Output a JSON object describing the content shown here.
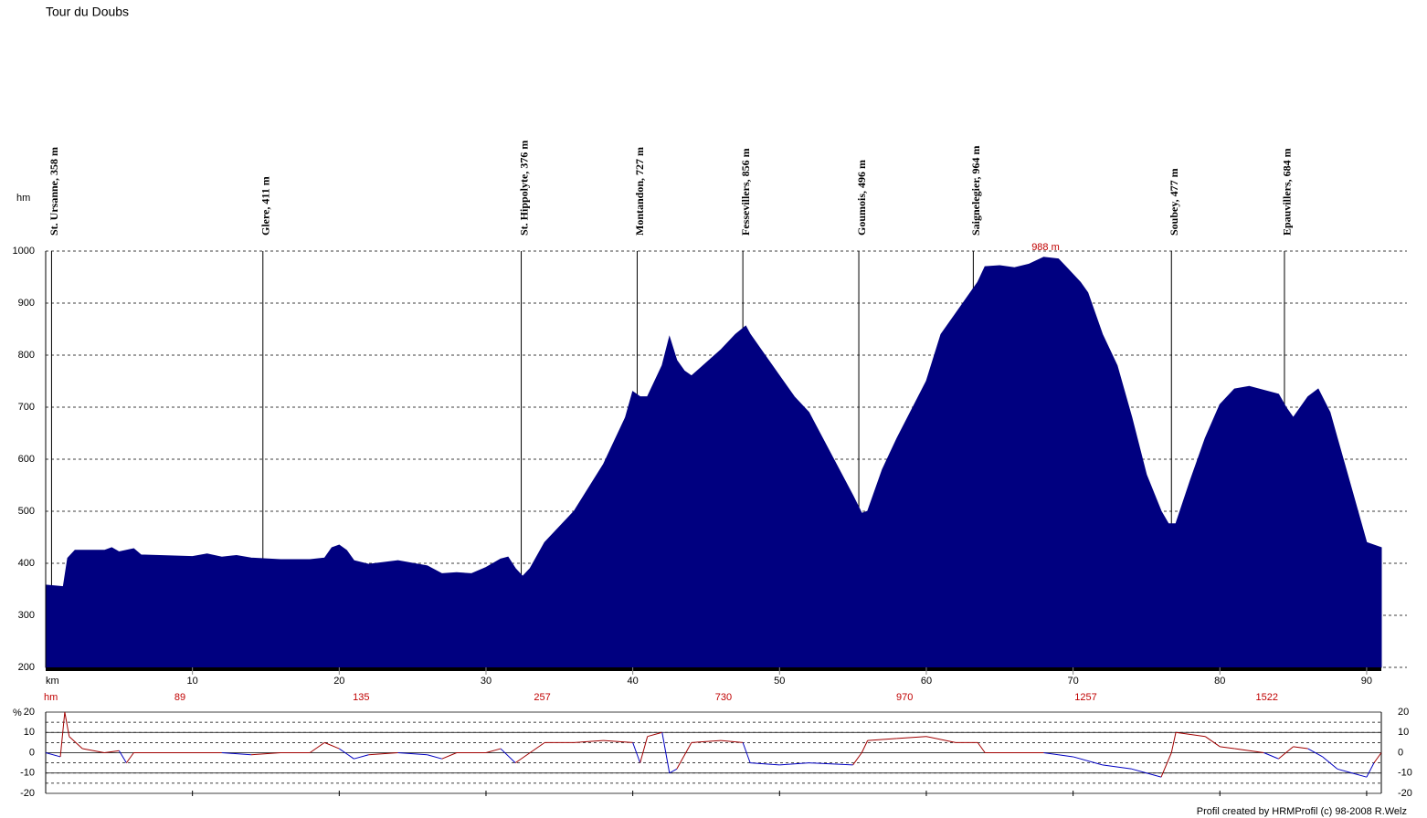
{
  "chart_data": [
    {
      "type": "area",
      "title": "Tour du Doubs",
      "y_label": "hm",
      "x_label": "km",
      "color": "#000080",
      "x": [
        0,
        1.2,
        1.5,
        2,
        4,
        4.5,
        5,
        6,
        6.5,
        10,
        11,
        12,
        13,
        14,
        16,
        18,
        19,
        19.5,
        20,
        20.5,
        21,
        22,
        24,
        25,
        26,
        27,
        28,
        29,
        30,
        31,
        31.5,
        32,
        32.5,
        33,
        34,
        36,
        38,
        39.5,
        40,
        40.5,
        41,
        42,
        42.5,
        43,
        43.5,
        44,
        46,
        47,
        47.7,
        48,
        50,
        51,
        52,
        55,
        55.6,
        56,
        57,
        58,
        60,
        61,
        62,
        63.5,
        64,
        65,
        66,
        67,
        68,
        69,
        69.5,
        70.5,
        71,
        72,
        73,
        74,
        75,
        76,
        76.5,
        77,
        78,
        79,
        80,
        81,
        82,
        84,
        84.5,
        85,
        86,
        86.7,
        87.5,
        88,
        89,
        90,
        91
      ],
      "values": [
        358,
        355,
        410,
        425,
        425,
        430,
        422,
        428,
        416,
        413,
        418,
        412,
        415,
        410,
        407,
        407,
        410,
        430,
        435,
        425,
        405,
        398,
        405,
        400,
        395,
        380,
        382,
        380,
        392,
        408,
        412,
        390,
        375,
        390,
        440,
        500,
        590,
        680,
        730,
        720,
        720,
        780,
        835,
        790,
        770,
        760,
        810,
        840,
        856,
        840,
        760,
        720,
        690,
        530,
        496,
        500,
        580,
        640,
        750,
        840,
        880,
        940,
        970,
        972,
        968,
        975,
        988,
        985,
        970,
        940,
        920,
        840,
        780,
        680,
        570,
        500,
        476,
        476,
        560,
        640,
        705,
        735,
        740,
        725,
        700,
        680,
        720,
        735,
        690,
        640,
        540,
        440,
        430
      ],
      "xlim": [
        0,
        91
      ],
      "ylim": [
        200,
        1000
      ],
      "xticks": [
        10,
        20,
        30,
        40,
        50,
        60,
        70,
        80,
        90
      ],
      "yticks": [
        200,
        300,
        400,
        500,
        600,
        700,
        800,
        900,
        1000
      ],
      "grid": true,
      "waypoints": [
        {
          "label": "St. Ursanne, 358 m",
          "x": 0.4
        },
        {
          "label": "Glere, 411 m",
          "x": 14.8
        },
        {
          "label": "St. Hippolyte, 376 m",
          "x": 32.4
        },
        {
          "label": "Montandon, 727 m",
          "x": 40.3
        },
        {
          "label": "Fessevillers, 856 m",
          "x": 47.5
        },
        {
          "label": "Goumois, 496 m",
          "x": 55.4
        },
        {
          "label": "Saignelegier, 964 m",
          "x": 63.2
        },
        {
          "label": "Soubey, 477 m",
          "x": 76.7
        },
        {
          "label": "Epauvillers, 684 m",
          "x": 84.4
        }
      ],
      "annotation": {
        "text": "988 m",
        "x": 68
      },
      "climb_label": "hm",
      "climb_values": [
        89,
        135,
        257,
        730,
        970,
        1257,
        1522
      ]
    },
    {
      "type": "gradient",
      "y_label": "%",
      "x": [
        0,
        1,
        1.3,
        1.6,
        2.5,
        4,
        5,
        5.5,
        6,
        8,
        10,
        12,
        14,
        16,
        18,
        19,
        20,
        21,
        22,
        24,
        26,
        27,
        28,
        30,
        31,
        32,
        33,
        34,
        36,
        38,
        40,
        40.5,
        41,
        42,
        42.5,
        43,
        44,
        46,
        47.5,
        48,
        50,
        52,
        55,
        55.6,
        56,
        58,
        60,
        62,
        63.5,
        64,
        66,
        68,
        69,
        70,
        72,
        74,
        75,
        76,
        76.7,
        77,
        79,
        80,
        81,
        83,
        84,
        85,
        86,
        87,
        88,
        89,
        90,
        90.5,
        91
      ],
      "values": [
        0,
        -2,
        20,
        8,
        2,
        0,
        1,
        -5,
        0,
        0,
        0,
        0,
        -1,
        0,
        0,
        5,
        2,
        -3,
        -1,
        0,
        -1,
        -3,
        0,
        0,
        2,
        -5,
        0,
        5,
        5,
        6,
        5,
        -5,
        8,
        10,
        -10,
        -8,
        5,
        6,
        5,
        -5,
        -6,
        -5,
        -6,
        0,
        6,
        7,
        8,
        5,
        5,
        0,
        0,
        0,
        -1,
        -2,
        -6,
        -8,
        -10,
        -12,
        0,
        10,
        8,
        3,
        2,
        0,
        -3,
        3,
        2,
        -2,
        -8,
        -10,
        -12,
        -5,
        0
      ],
      "positive_color": "#a00000",
      "negative_color": "#0000c0",
      "xlim": [
        0,
        91
      ],
      "ylim": [
        -20,
        20
      ],
      "yticks": [
        -20,
        -10,
        0,
        10,
        20
      ],
      "grid_lines": [
        -15,
        -10,
        -5,
        5,
        10,
        15
      ]
    }
  ],
  "footer": "Profil created by HRMProfil (c) 98-2008 R.Welz"
}
